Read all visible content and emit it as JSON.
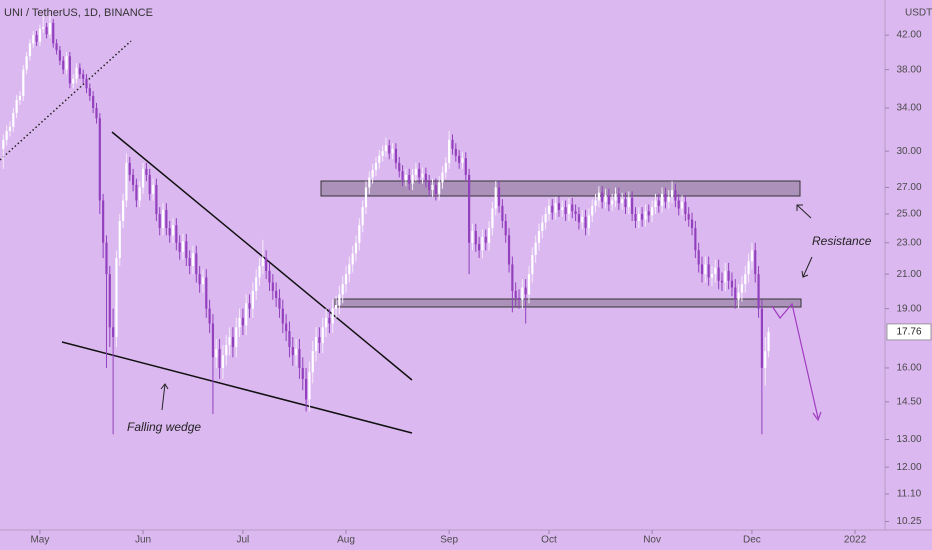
{
  "chart_data": {
    "type": "candlestick",
    "title": "UNI / TetherUS, 1D, BINANCE",
    "ylabel": "USDT",
    "log_scale": true,
    "grid": false,
    "up_color": "#ffffff",
    "down_color": "#9240bd",
    "ylim": [
      10,
      46.5
    ],
    "yticks": [
      {
        "value": 42,
        "label": "42.00"
      },
      {
        "value": 38,
        "label": "38.00"
      },
      {
        "value": 34,
        "label": "34.00"
      },
      {
        "value": 30,
        "label": "30.00"
      },
      {
        "value": 27,
        "label": "27.00"
      },
      {
        "value": 25,
        "label": "25.00"
      },
      {
        "value": 23,
        "label": "23.00"
      },
      {
        "value": 21,
        "label": "21.00"
      },
      {
        "value": 19,
        "label": "19.00"
      },
      {
        "value": 16,
        "label": "16.00"
      },
      {
        "value": 14.5,
        "label": "14.50"
      },
      {
        "value": 13,
        "label": "13.00"
      },
      {
        "value": 12,
        "label": "12.00"
      },
      {
        "value": 11.1,
        "label": "11.10"
      },
      {
        "value": 10.25,
        "label": "10.25"
      }
    ],
    "xlim": [
      -1,
      265
    ],
    "xticks": [
      {
        "value": 11,
        "label": "May"
      },
      {
        "value": 42,
        "label": "Jun"
      },
      {
        "value": 72,
        "label": "Jul"
      },
      {
        "value": 103,
        "label": "Aug"
      },
      {
        "value": 134,
        "label": "Sep"
      },
      {
        "value": 164,
        "label": "Oct"
      },
      {
        "value": 195,
        "label": "Nov"
      },
      {
        "value": 225,
        "label": "Dec"
      },
      {
        "value": 256,
        "label": "2022"
      }
    ],
    "annotations": [
      "Falling wedge",
      "Resistance"
    ],
    "open": [
      30.2,
      31.0,
      31.8,
      32.2,
      33.5,
      34.8,
      35.2,
      38.0,
      39.5,
      41.0,
      42.0,
      41.2,
      42.8,
      43.0,
      42.1,
      43.5,
      41.0,
      40.2,
      39.0,
      38.0,
      39.5,
      36.5,
      37.0,
      38.2,
      37.5,
      37.0,
      36.0,
      35.2,
      34.0,
      33.0,
      26.0,
      23.0,
      21.0,
      18.0,
      17.5,
      22.0,
      24.5,
      26.0,
      29.0,
      28.0,
      27.2,
      26.0,
      27.0,
      28.5,
      28.0,
      26.5,
      27.2,
      25.0,
      24.0,
      25.3,
      24.0,
      23.5,
      24.2,
      23.0,
      22.4,
      23.1,
      22.0,
      21.5,
      22.3,
      21.0,
      20.4,
      20.8,
      19.0,
      18.2,
      16.5,
      16.9,
      16.0,
      16.6,
      17.1,
      17.5,
      17.0,
      18.0,
      18.5,
      18.1,
      19.3,
      19.0,
      20.0,
      20.8,
      21.5,
      22.0,
      21.2,
      20.5,
      20.0,
      19.6,
      19.0,
      18.2,
      17.8,
      17.0,
      16.6,
      16.9,
      16.0,
      15.5,
      14.6,
      15.8,
      16.8,
      17.5,
      17.2,
      18.0,
      18.5,
      18.2,
      19.0,
      19.2,
      19.8,
      20.4,
      21.0,
      21.6,
      22.3,
      23.0,
      24.2,
      25.5,
      27.0,
      27.8,
      28.4,
      29.0,
      29.6,
      30.0,
      30.5,
      29.8,
      30.2,
      29.0,
      28.3,
      27.6,
      28.0,
      27.3,
      28.0,
      28.5,
      27.8,
      28.1,
      27.5,
      26.8,
      27.2,
      26.5,
      27.4,
      28.2,
      29.0,
      31.0,
      30.2,
      29.6,
      29.0,
      29.4,
      28.0,
      23.0,
      23.8,
      22.9,
      22.5,
      23.4,
      23.0,
      24.0,
      25.4,
      27.0,
      25.6,
      24.5,
      23.5,
      21.6,
      20.0,
      19.6,
      19.5,
      20.2,
      19.8,
      21.0,
      22.2,
      23.0,
      23.8,
      24.4,
      25.0,
      25.6,
      25.1,
      25.8,
      25.3,
      25.5,
      25.0,
      25.7,
      25.2,
      25.0,
      24.4,
      24.8,
      24.0,
      24.9,
      25.6,
      26.0,
      26.6,
      25.9,
      26.4,
      25.7,
      26.0,
      26.5,
      25.8,
      26.1,
      25.5,
      26.2,
      25.0,
      24.5,
      25.0,
      24.6,
      25.2,
      24.9,
      25.5,
      26.0,
      25.6,
      26.5,
      25.9,
      26.3,
      26.8,
      26.0,
      25.4,
      25.9,
      25.0,
      24.6,
      24.0,
      22.5,
      21.6,
      21.0,
      21.6,
      20.8,
      21.0,
      21.4,
      20.6,
      20.5,
      21.2,
      20.6,
      20.2,
      19.5,
      19.9,
      20.4,
      21.0,
      21.8,
      22.5,
      21.0,
      19.0,
      16.0,
      16.8
    ],
    "high": [
      31.5,
      32.3,
      32.7,
      34.0,
      35.3,
      35.7,
      38.5,
      40.0,
      41.5,
      42.5,
      42.5,
      43.3,
      44.5,
      43.5,
      44.5,
      44.0,
      41.5,
      40.7,
      39.5,
      40.0,
      40.0,
      37.5,
      38.7,
      38.7,
      38.0,
      37.5,
      36.5,
      35.7,
      34.5,
      33.5,
      26.5,
      23.5,
      21.5,
      19.0,
      22.5,
      25.0,
      26.5,
      29.8,
      29.5,
      28.5,
      27.7,
      27.5,
      29.0,
      29.0,
      28.5,
      27.7,
      27.7,
      25.5,
      25.8,
      25.8,
      24.5,
      24.7,
      24.7,
      23.5,
      23.6,
      23.6,
      22.5,
      22.8,
      22.8,
      21.5,
      21.3,
      21.3,
      19.5,
      18.7,
      17.4,
      17.4,
      17.1,
      17.6,
      18.0,
      18.0,
      18.5,
      19.0,
      19.0,
      19.8,
      19.8,
      20.5,
      21.3,
      22.0,
      23.2,
      22.5,
      21.7,
      21.0,
      20.5,
      20.1,
      19.5,
      18.7,
      18.3,
      17.5,
      17.4,
      17.4,
      16.5,
      16.0,
      16.3,
      17.3,
      18.0,
      18.0,
      18.5,
      19.0,
      19.0,
      19.5,
      19.7,
      20.3,
      20.9,
      21.5,
      22.1,
      22.8,
      23.5,
      24.7,
      26.0,
      27.5,
      28.3,
      28.9,
      29.5,
      30.1,
      30.5,
      31.2,
      31.0,
      30.7,
      30.7,
      29.5,
      28.8,
      28.5,
      28.5,
      28.5,
      29.0,
      29.0,
      28.6,
      28.6,
      28.0,
      27.7,
      27.7,
      27.9,
      28.7,
      29.5,
      31.8,
      31.5,
      30.7,
      30.1,
      29.9,
      29.9,
      28.5,
      24.3,
      24.3,
      23.4,
      23.9,
      23.9,
      24.5,
      25.9,
      27.5,
      27.5,
      26.1,
      25.0,
      24.0,
      22.1,
      20.5,
      20.1,
      20.7,
      20.7,
      21.5,
      22.7,
      23.5,
      24.3,
      24.9,
      25.5,
      26.1,
      26.1,
      26.3,
      26.3,
      26.0,
      26.0,
      26.2,
      26.2,
      25.7,
      25.5,
      25.3,
      25.3,
      25.4,
      26.1,
      26.5,
      27.1,
      27.1,
      26.9,
      26.9,
      26.5,
      27.0,
      27.0,
      26.6,
      26.6,
      26.7,
      26.7,
      25.5,
      25.5,
      25.5,
      25.7,
      25.7,
      26.0,
      26.5,
      26.5,
      27.0,
      27.0,
      26.8,
      27.5,
      27.3,
      26.5,
      26.4,
      26.4,
      25.5,
      25.1,
      24.5,
      23.0,
      22.1,
      22.1,
      22.1,
      21.5,
      21.9,
      21.9,
      21.1,
      21.7,
      21.7,
      21.1,
      20.7,
      20.4,
      20.9,
      21.5,
      22.3,
      23.0,
      23.0,
      21.5,
      19.5,
      17.5,
      18.0
    ],
    "low": [
      28.5,
      30.5,
      31.3,
      31.7,
      33.0,
      34.3,
      34.7,
      37.5,
      39.0,
      40.5,
      40.7,
      40.7,
      42.3,
      41.6,
      41.6,
      40.5,
      39.7,
      38.5,
      37.5,
      37.5,
      36.0,
      36.0,
      36.5,
      37.0,
      36.5,
      35.5,
      34.7,
      33.5,
      32.5,
      25.0,
      22.0,
      16.0,
      17.0,
      13.2,
      17.0,
      21.5,
      24.0,
      25.5,
      27.5,
      26.7,
      25.5,
      25.5,
      26.5,
      27.5,
      26.0,
      26.0,
      24.5,
      23.5,
      23.5,
      23.5,
      23.0,
      23.0,
      22.5,
      21.9,
      21.9,
      21.5,
      21.0,
      21.0,
      20.5,
      19.9,
      19.9,
      18.5,
      17.7,
      14.0,
      16.0,
      15.5,
      15.5,
      16.1,
      16.6,
      16.5,
      16.5,
      17.5,
      17.6,
      17.6,
      18.5,
      18.5,
      19.5,
      20.3,
      21.0,
      20.7,
      20.0,
      19.5,
      19.1,
      18.5,
      17.7,
      17.3,
      16.5,
      16.1,
      16.1,
      15.5,
      15.0,
      14.1,
      14.1,
      15.3,
      16.3,
      16.7,
      16.7,
      17.5,
      17.7,
      17.7,
      18.5,
      18.7,
      19.3,
      19.9,
      20.5,
      21.1,
      21.8,
      22.5,
      23.7,
      25.0,
      26.5,
      27.3,
      27.9,
      28.5,
      29.1,
      29.5,
      29.3,
      29.3,
      28.5,
      27.8,
      27.1,
      27.1,
      26.8,
      26.8,
      27.5,
      27.3,
      27.3,
      27.0,
      26.3,
      26.3,
      26.0,
      26.0,
      26.9,
      27.7,
      28.5,
      29.7,
      29.1,
      28.5,
      28.5,
      27.5,
      21.0,
      22.5,
      22.4,
      22.0,
      22.0,
      22.5,
      22.5,
      23.5,
      24.9,
      25.1,
      24.0,
      23.0,
      21.1,
      18.8,
      19.1,
      19.0,
      19.0,
      18.2,
      19.3,
      20.5,
      21.7,
      22.5,
      23.3,
      23.9,
      24.5,
      24.6,
      24.6,
      24.8,
      24.8,
      24.5,
      24.5,
      24.7,
      24.5,
      23.9,
      23.9,
      23.5,
      23.5,
      24.4,
      25.1,
      25.5,
      25.4,
      25.4,
      25.2,
      25.2,
      25.5,
      25.3,
      25.3,
      25.0,
      25.0,
      24.5,
      24.0,
      24.0,
      24.1,
      24.1,
      24.4,
      24.4,
      25.0,
      25.1,
      25.1,
      25.4,
      25.4,
      25.8,
      25.5,
      24.9,
      24.9,
      24.5,
      24.1,
      23.5,
      22.0,
      21.1,
      20.5,
      20.5,
      20.3,
      20.3,
      20.5,
      20.1,
      20.0,
      20.0,
      20.1,
      19.7,
      19.0,
      19.0,
      19.4,
      19.9,
      20.5,
      21.3,
      20.5,
      18.5,
      13.2,
      15.2,
      16.5
    ],
    "close": [
      31.0,
      31.8,
      32.2,
      33.5,
      34.8,
      35.2,
      38.0,
      39.5,
      41.0,
      42.0,
      41.2,
      42.8,
      43.0,
      42.1,
      43.5,
      41.0,
      40.2,
      39.0,
      38.0,
      39.5,
      36.5,
      37.0,
      38.2,
      37.5,
      37.0,
      36.0,
      35.2,
      34.0,
      33.0,
      26.0,
      23.0,
      21.0,
      18.0,
      17.5,
      22.0,
      24.5,
      26.0,
      29.0,
      28.0,
      27.2,
      26.0,
      27.0,
      28.5,
      28.0,
      26.5,
      27.2,
      25.0,
      24.0,
      25.3,
      24.0,
      23.5,
      24.2,
      23.0,
      22.4,
      23.1,
      22.0,
      21.5,
      22.3,
      21.0,
      20.4,
      20.8,
      19.0,
      18.2,
      16.5,
      16.9,
      16.0,
      16.6,
      17.1,
      17.5,
      17.0,
      18.0,
      18.5,
      18.1,
      19.3,
      19.0,
      20.0,
      20.8,
      21.5,
      22.0,
      21.2,
      20.5,
      20.0,
      19.6,
      19.0,
      18.2,
      17.8,
      17.0,
      16.6,
      16.9,
      16.0,
      15.5,
      14.6,
      15.8,
      16.8,
      17.5,
      17.2,
      18.0,
      18.5,
      18.2,
      19.0,
      19.2,
      19.8,
      20.4,
      21.0,
      21.6,
      22.3,
      23.0,
      24.2,
      25.5,
      27.0,
      27.8,
      28.4,
      29.0,
      29.6,
      30.0,
      30.5,
      29.8,
      30.2,
      29.0,
      28.3,
      27.6,
      28.0,
      27.3,
      28.0,
      28.5,
      27.8,
      28.1,
      27.5,
      26.8,
      27.2,
      26.5,
      27.4,
      28.2,
      29.0,
      31.0,
      30.2,
      29.6,
      29.0,
      29.4,
      28.0,
      23.0,
      23.8,
      22.9,
      22.5,
      23.4,
      23.0,
      24.0,
      25.4,
      27.0,
      25.6,
      24.5,
      23.5,
      21.6,
      20.0,
      19.6,
      19.5,
      20.2,
      19.8,
      21.0,
      22.2,
      23.0,
      23.8,
      24.4,
      25.0,
      25.6,
      25.1,
      25.8,
      25.3,
      25.5,
      25.0,
      25.7,
      25.2,
      25.0,
      24.4,
      24.8,
      24.0,
      24.9,
      25.6,
      26.0,
      26.6,
      25.9,
      26.4,
      25.7,
      26.0,
      26.5,
      25.8,
      26.1,
      25.5,
      26.2,
      25.0,
      24.5,
      25.0,
      24.6,
      25.2,
      24.9,
      25.5,
      26.0,
      25.6,
      26.5,
      25.9,
      26.3,
      26.8,
      26.0,
      25.4,
      25.9,
      25.0,
      24.6,
      24.0,
      22.5,
      21.6,
      21.0,
      21.6,
      20.8,
      21.0,
      21.4,
      20.6,
      20.5,
      21.2,
      20.6,
      20.2,
      19.5,
      19.9,
      20.4,
      21.0,
      21.8,
      22.5,
      21.0,
      19.0,
      16.0,
      16.8,
      17.76
    ]
  }
}
